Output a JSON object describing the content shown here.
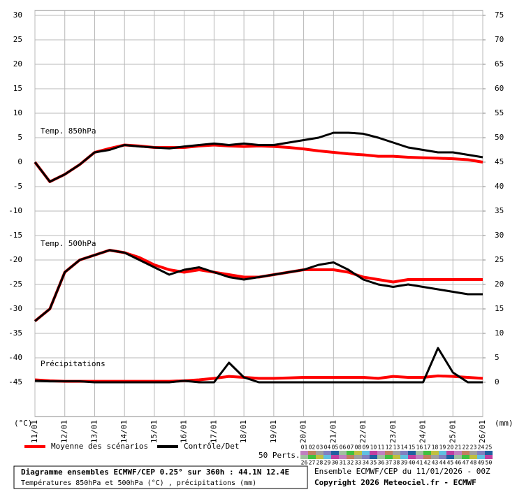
{
  "chart_data": {
    "type": "line",
    "annotations": [
      "Temp. 850hPa",
      "Temp. 500hPa",
      "Précipitations"
    ],
    "y_unit": "(°C)",
    "y2_unit": "(mm)",
    "x": [
      0,
      12,
      24,
      36,
      48,
      60,
      72,
      84,
      96,
      108,
      120,
      132,
      144,
      156,
      168,
      180,
      192,
      204,
      216,
      228,
      240,
      252,
      264,
      276,
      288,
      300,
      312,
      324,
      336,
      348,
      360
    ],
    "xlim": [
      0,
      360
    ],
    "xticks": [
      {
        "value": 0,
        "label": "11/01"
      },
      {
        "value": 24,
        "label": "12/01"
      },
      {
        "value": 48,
        "label": "13/01"
      },
      {
        "value": 72,
        "label": "14/01"
      },
      {
        "value": 96,
        "label": "15/01"
      },
      {
        "value": 120,
        "label": "16/01"
      },
      {
        "value": 144,
        "label": "17/01"
      },
      {
        "value": 168,
        "label": "18/01"
      },
      {
        "value": 192,
        "label": "19/01"
      },
      {
        "value": 216,
        "label": "20/01"
      },
      {
        "value": 240,
        "label": "21/01"
      },
      {
        "value": 264,
        "label": "22/01"
      },
      {
        "value": 288,
        "label": "23/01"
      },
      {
        "value": 312,
        "label": "24/01"
      },
      {
        "value": 336,
        "label": "25/01"
      },
      {
        "value": 360,
        "label": "26/01"
      }
    ],
    "ylim": [
      -52,
      31
    ],
    "yticks": [
      30,
      25,
      20,
      15,
      10,
      5,
      0,
      -5,
      -10,
      -15,
      -20,
      -25,
      -30,
      -35,
      -40,
      -45
    ],
    "y2lim": [
      -7,
      76
    ],
    "y2ticks": [
      75,
      70,
      65,
      60,
      55,
      50,
      45,
      40,
      35,
      30,
      25,
      20,
      15,
      10,
      5,
      0
    ],
    "grid": true,
    "series": [
      {
        "name": "Moyenne des scénarios",
        "color": "#ff0000",
        "values": [
          0,
          -4,
          -2.5,
          -0.5,
          2,
          2.8,
          3.5,
          3.3,
          3,
          3,
          3,
          3.3,
          3.5,
          3.3,
          3.2,
          3.3,
          3.2,
          3,
          2.7,
          2.3,
          2,
          1.7,
          1.5,
          1.2,
          1.2,
          1,
          0.9,
          0.8,
          0.7,
          0.5,
          0
        ]
      },
      {
        "name": "Contrôle/Det",
        "color": "#000000",
        "values": [
          0,
          -4,
          -2.5,
          -0.5,
          2,
          2.5,
          3.5,
          3.2,
          3,
          2.8,
          3.2,
          3.5,
          3.8,
          3.5,
          3.8,
          3.5,
          3.5,
          4,
          4.5,
          5,
          6,
          6,
          5.8,
          5,
          4,
          3,
          2.5,
          2,
          2,
          1.5,
          1
        ]
      },
      {
        "name": "Moyenne des scénarios",
        "color": "#ff0000",
        "values": [
          -32.5,
          -30,
          -22.5,
          -20,
          -19,
          -18,
          -18.5,
          -19.5,
          -21,
          -22,
          -22.5,
          -22,
          -22.5,
          -23,
          -23.5,
          -23.5,
          -23,
          -22.5,
          -22,
          -22,
          -22,
          -22.5,
          -23.5,
          -24,
          -24.5,
          -24,
          -24,
          -24,
          -24,
          -24,
          -24
        ]
      },
      {
        "name": "Contrôle/Det",
        "color": "#000000",
        "values": [
          -32.5,
          -30,
          -22.5,
          -20,
          -19,
          -18,
          -18.5,
          -20,
          -21.5,
          -23,
          -22,
          -21.5,
          -22.5,
          -23.5,
          -24,
          -23.5,
          -23,
          -22.5,
          -22,
          -21,
          -20.5,
          -22,
          -24,
          -25,
          -25.5,
          -25,
          -25.5,
          -26,
          -26.5,
          -27,
          -27
        ]
      },
      {
        "name": "Moyenne des scénarios",
        "color": "#ff0000",
        "axis": "y2",
        "values": [
          0.5,
          0.3,
          0.2,
          0.2,
          0.2,
          0.2,
          0.2,
          0.2,
          0.2,
          0.2,
          0.3,
          0.5,
          0.8,
          1.2,
          1,
          0.8,
          0.8,
          0.9,
          1,
          1,
          1,
          1,
          1,
          0.8,
          1.2,
          1,
          1,
          1.3,
          1.2,
          1,
          0.8
        ]
      },
      {
        "name": "Contrôle/Det",
        "color": "#000000",
        "axis": "y2",
        "values": [
          0.3,
          0.2,
          0.2,
          0.2,
          0,
          0,
          0,
          0,
          0,
          0,
          0.3,
          0,
          0,
          4,
          1,
          0,
          0,
          0,
          0,
          0,
          0,
          0,
          0,
          0,
          0,
          0,
          0,
          7,
          2,
          0,
          0
        ]
      }
    ],
    "members_label": "50 Perts.",
    "members": [
      "01",
      "02",
      "03",
      "04",
      "05",
      "06",
      "07",
      "08",
      "09",
      "10",
      "11",
      "12",
      "13",
      "14",
      "15",
      "16",
      "17",
      "18",
      "19",
      "20",
      "21",
      "22",
      "23",
      "24",
      "25",
      "26",
      "27",
      "28",
      "29",
      "30",
      "31",
      "32",
      "33",
      "34",
      "35",
      "36",
      "37",
      "38",
      "39",
      "40",
      "41",
      "42",
      "43",
      "44",
      "45",
      "46",
      "47",
      "48",
      "49",
      "50"
    ],
    "member_colors": [
      "#c080c0",
      "#c08060",
      "#a0a0a0",
      "#8080c0",
      "#2060a0",
      "#a0c0a0",
      "#40c040",
      "#c0c040",
      "#60c0e0",
      "#c040a0"
    ],
    "footer": {
      "title": "Diagramme ensembles ECMWF/CEP 0.25° sur 360h : 44.1N 12.4E",
      "subtitle": "Températures 850hPa et 500hPa (°C) , précipitations (mm)",
      "run": "Ensemble ECMWF/CEP du 11/01/2026 - 00Z",
      "copyright": "Copyright 2026 Meteociel.fr - ECMWF"
    }
  }
}
